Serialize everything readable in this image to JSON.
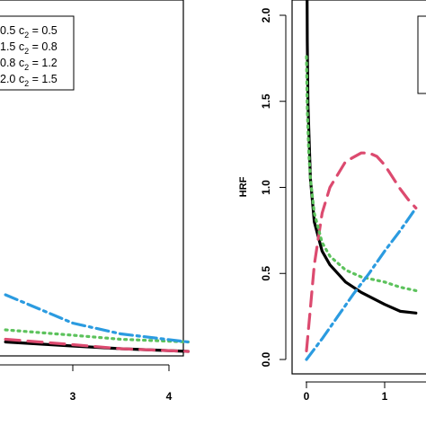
{
  "chart_data": [
    {
      "type": "line",
      "panel": "left",
      "title": "",
      "xlabel": "",
      "ylabel": "",
      "xlim": [
        0,
        4
      ],
      "x_ticks": [
        "3",
        "4"
      ],
      "legend_position": "top-left",
      "legend": [
        {
          "text_c1": "0.5",
          "c2_sym": "c",
          "c2_sub": "2",
          "c2_value": "= 0.5"
        },
        {
          "text_c1": "1.5",
          "c2_sym": "c",
          "c2_sub": "2",
          "c2_value": "= 0.8"
        },
        {
          "text_c1": "0.8",
          "c2_sym": "c",
          "c2_sub": "2",
          "c2_value": "= 1.2"
        },
        {
          "text_c1": "2.0",
          "c2_sym": "c",
          "c2_sub": "2",
          "c2_value": "= 1.5"
        }
      ],
      "series": [
        {
          "color": "#000000",
          "style": "solid",
          "x": [
            2.3,
            3.0,
            3.5,
            4.2
          ],
          "y": [
            0.03,
            0.0,
            -0.02,
            -0.04
          ]
        },
        {
          "color": "#dc4a6f",
          "style": "dashed",
          "x": [
            2.3,
            3.0,
            3.5,
            4.2
          ],
          "y": [
            0.05,
            0.01,
            -0.02,
            -0.04
          ]
        },
        {
          "color": "#5cc25c",
          "style": "dotted",
          "x": [
            2.3,
            3.0,
            3.5,
            4.2
          ],
          "y": [
            0.12,
            0.08,
            0.05,
            0.03
          ]
        },
        {
          "color": "#2b9be0",
          "style": "dotdash",
          "x": [
            2.3,
            3.0,
            3.5,
            4.2
          ],
          "y": [
            0.38,
            0.17,
            0.09,
            0.03
          ]
        }
      ]
    },
    {
      "type": "line",
      "panel": "right",
      "title": "",
      "xlabel": "",
      "ylabel": "HRF",
      "ylim": [
        0,
        2.0
      ],
      "y_ticks": [
        "0.0",
        "0.5",
        "1.0",
        "1.5",
        "2.0"
      ],
      "x_ticks": [
        "0",
        "1"
      ],
      "series": [
        {
          "color": "#000000",
          "style": "solid",
          "x": [
            0.0075,
            0.01,
            0.02,
            0.05,
            0.1,
            0.2,
            0.3,
            0.5,
            0.7,
            1.0,
            1.2,
            1.4
          ],
          "y": [
            2.1,
            1.85,
            1.48,
            1.05,
            0.8,
            0.63,
            0.55,
            0.45,
            0.39,
            0.32,
            0.28,
            0.27
          ]
        },
        {
          "color": "#dc4a6f",
          "style": "dashed",
          "x": [
            0.0,
            0.05,
            0.1,
            0.2,
            0.3,
            0.5,
            0.7,
            0.8,
            0.9,
            1.0,
            1.1,
            1.2,
            1.3,
            1.4
          ],
          "y": [
            0.05,
            0.3,
            0.55,
            0.85,
            1.0,
            1.15,
            1.2,
            1.2,
            1.18,
            1.13,
            1.06,
            0.99,
            0.93,
            0.88
          ]
        },
        {
          "color": "#5cc25c",
          "style": "dotted",
          "x": [
            0.0,
            0.01,
            0.03,
            0.05,
            0.1,
            0.2,
            0.3,
            0.5,
            0.7,
            1.0,
            1.2,
            1.4
          ],
          "y": [
            1.76,
            1.45,
            1.2,
            1.05,
            0.85,
            0.68,
            0.6,
            0.52,
            0.48,
            0.45,
            0.42,
            0.4
          ]
        },
        {
          "color": "#2b9be0",
          "style": "dotdash",
          "x": [
            0.0,
            0.2,
            0.4,
            0.6,
            0.8,
            1.0,
            1.2,
            1.4
          ],
          "y": [
            0.0,
            0.12,
            0.25,
            0.38,
            0.5,
            0.63,
            0.75,
            0.88
          ]
        }
      ]
    }
  ]
}
